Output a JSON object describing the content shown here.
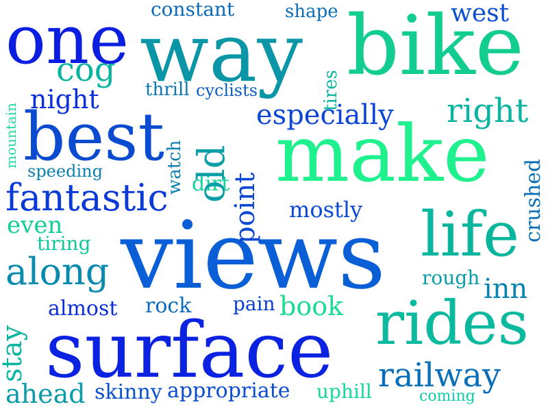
{
  "words": [
    {
      "text": "views",
      "color": "#0a5ed6"
    },
    {
      "text": "surface",
      "color": "#0b22e0"
    },
    {
      "text": "make",
      "color": "#1ff18f"
    },
    {
      "text": "bike",
      "color": "#12cc90"
    },
    {
      "text": "way",
      "color": "#0a96a6"
    },
    {
      "text": "best",
      "color": "#0a4bcf"
    },
    {
      "text": "one",
      "color": "#0b1fe0"
    },
    {
      "text": "rides",
      "color": "#0ab99e"
    },
    {
      "text": "life",
      "color": "#0ab59e"
    },
    {
      "text": "fantastic",
      "color": "#0b3ad6"
    },
    {
      "text": "along",
      "color": "#0a8aac"
    },
    {
      "text": "railway",
      "color": "#0a6fb8"
    },
    {
      "text": "right",
      "color": "#0ab49f"
    },
    {
      "text": "especially",
      "color": "#0b46d4"
    },
    {
      "text": "old",
      "color": "#0a9fa6"
    },
    {
      "text": "cog",
      "color": "#0ab49f"
    },
    {
      "text": "night",
      "color": "#0b2fd8"
    },
    {
      "text": "point",
      "color": "#0b47d2"
    },
    {
      "text": "stay",
      "color": "#0ab59f"
    },
    {
      "text": "ahead",
      "color": "#0a9aa8"
    },
    {
      "text": "skinny",
      "color": "#0a4fd0"
    },
    {
      "text": "appropriate",
      "color": "#0b4ccf"
    },
    {
      "text": "book",
      "color": "#1bdc90"
    },
    {
      "text": "inn",
      "color": "#0a83b0"
    },
    {
      "text": "west",
      "color": "#0b4ed0"
    },
    {
      "text": "crushed",
      "color": "#0a6fb8"
    },
    {
      "text": "tires",
      "color": "#0ab59f"
    },
    {
      "text": "watch",
      "color": "#0a7fb0"
    },
    {
      "text": "even",
      "color": "#10cc95"
    },
    {
      "text": "mostly",
      "color": "#0b4ad2"
    },
    {
      "text": "almost",
      "color": "#0b2ed8"
    },
    {
      "text": "rock",
      "color": "#0a6bbc"
    },
    {
      "text": "constant",
      "color": "#0a6ab9"
    },
    {
      "text": "shape",
      "color": "#0a6db8"
    },
    {
      "text": "thrill",
      "color": "#0a74b4"
    },
    {
      "text": "cyclists",
      "color": "#0a5cc4"
    },
    {
      "text": "speeding",
      "color": "#0a7fb0"
    },
    {
      "text": "dirt",
      "color": "#14d59a"
    },
    {
      "text": "tiring",
      "color": "#10c79a"
    },
    {
      "text": "pain",
      "color": "#0b40d0"
    },
    {
      "text": "rough",
      "color": "#0a9da8"
    },
    {
      "text": "uphill",
      "color": "#16d99a"
    },
    {
      "text": "coming",
      "color": "#10ccaa"
    },
    {
      "text": "mountain",
      "color": "#1bdc9b"
    }
  ]
}
